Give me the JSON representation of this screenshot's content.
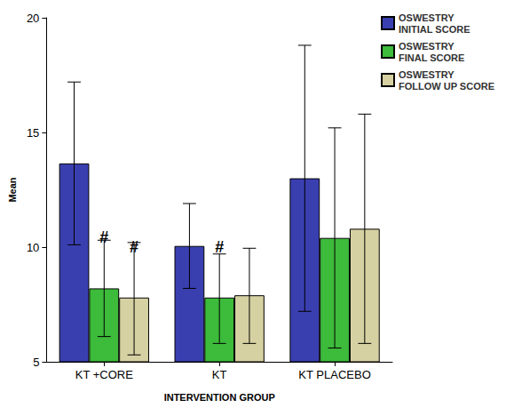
{
  "chart_data": {
    "type": "bar",
    "x_label": "INTERVENTION GROUP",
    "y_label": "Mean",
    "categories": [
      "KT +CORE",
      "KT",
      "KT PLACEBO"
    ],
    "series": [
      {
        "name": "OSWESTRY INITIAL SCORE",
        "color": "#3a3fb0",
        "values": [
          13.65,
          10.05,
          13.0
        ],
        "error_low": [
          10.1,
          8.2,
          7.2
        ],
        "error_high": [
          17.2,
          11.9,
          18.8
        ]
      },
      {
        "name": "OSWESTRY FINAL SCORE",
        "color": "#3dbb3b",
        "values": [
          8.2,
          7.8,
          10.4
        ],
        "error_low": [
          6.1,
          5.8,
          5.6
        ],
        "error_high": [
          10.3,
          9.7,
          15.2
        ]
      },
      {
        "name": "OSWESTRY FOLLOW UP SCORE",
        "color": "#d6d1a2",
        "values": [
          7.8,
          7.9,
          10.8
        ],
        "error_low": [
          5.3,
          5.8,
          5.8
        ],
        "error_high": [
          10.2,
          9.95,
          15.8
        ]
      }
    ],
    "ylim": [
      5,
      20
    ],
    "yticks": [
      5,
      10,
      15,
      20
    ],
    "grid": false,
    "legend": "top right",
    "annotations": [
      {
        "text": "#",
        "category": "KT +CORE",
        "series": "OSWESTRY FINAL SCORE"
      },
      {
        "text": "#",
        "category": "KT +CORE",
        "series": "OSWESTRY FOLLOW UP SCORE"
      },
      {
        "text": "#",
        "category": "KT",
        "series": "OSWESTRY FINAL SCORE"
      }
    ]
  }
}
